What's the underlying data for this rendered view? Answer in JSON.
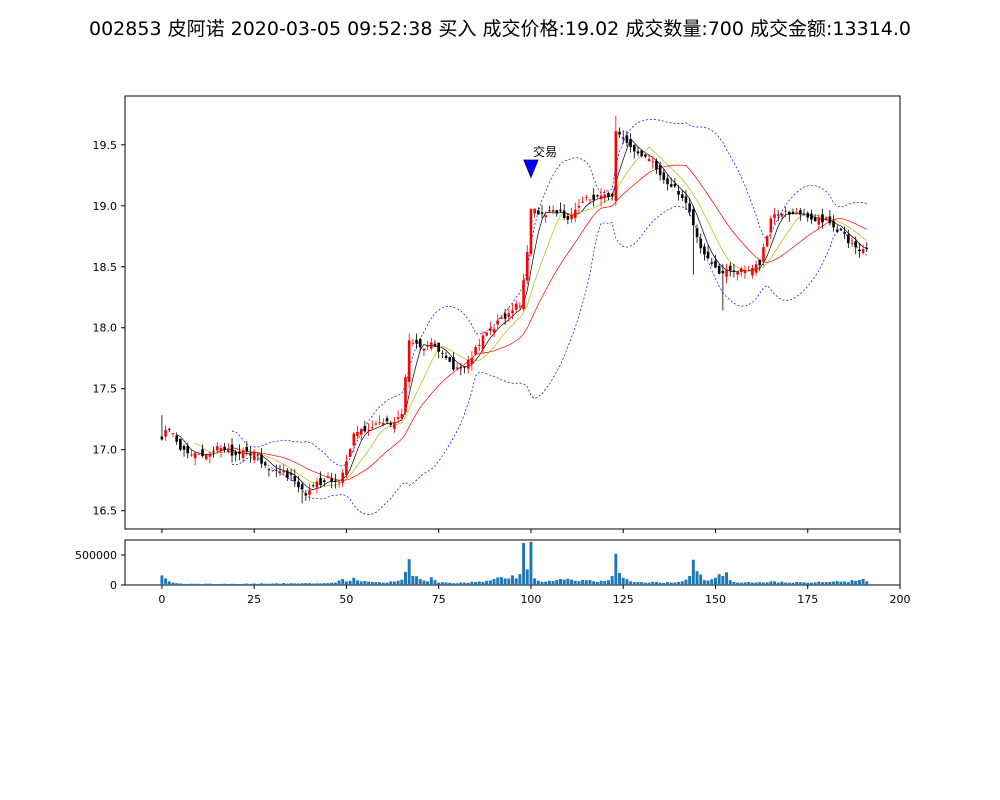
{
  "title": "002853 皮阿诺 2020-03-05 09:52:38 买入 成交价格:19.02 成交数量:700 成交金额:13314.0",
  "chart_data": [
    {
      "type": "candlestick",
      "panel": "price",
      "xlim": [
        -10,
        200
      ],
      "ylim": [
        16.35,
        19.9
      ],
      "yticks": [
        "16.5",
        "17.0",
        "17.5",
        "18.0",
        "18.5",
        "19.0",
        "19.5"
      ],
      "grid": false,
      "up_color": "#ff0000",
      "down_color": "#000000",
      "ma_colors": [
        "#000000",
        "#b8b800",
        "#ff0000"
      ],
      "bollinger_color": "#0000ff",
      "close_keypoints": [
        [
          0,
          17.1
        ],
        [
          2,
          17.18
        ],
        [
          5,
          17.0
        ],
        [
          8,
          16.94
        ],
        [
          12,
          16.98
        ],
        [
          16,
          17.02
        ],
        [
          20,
          16.96
        ],
        [
          25,
          16.98
        ],
        [
          28,
          16.85
        ],
        [
          32,
          16.82
        ],
        [
          36,
          16.76
        ],
        [
          39,
          16.62
        ],
        [
          42,
          16.72
        ],
        [
          45,
          16.76
        ],
        [
          48,
          16.74
        ],
        [
          50,
          16.9
        ],
        [
          52,
          17.12
        ],
        [
          55,
          17.16
        ],
        [
          58,
          17.2
        ],
        [
          62,
          17.22
        ],
        [
          65,
          17.28
        ],
        [
          67,
          17.9
        ],
        [
          70,
          17.82
        ],
        [
          73,
          17.88
        ],
        [
          76,
          17.8
        ],
        [
          79,
          17.66
        ],
        [
          82,
          17.68
        ],
        [
          85,
          17.82
        ],
        [
          88,
          17.96
        ],
        [
          91,
          18.04
        ],
        [
          94,
          18.12
        ],
        [
          97,
          18.2
        ],
        [
          99,
          18.6
        ],
        [
          100,
          18.98
        ],
        [
          103,
          18.92
        ],
        [
          106,
          18.98
        ],
        [
          110,
          18.9
        ],
        [
          114,
          19.04
        ],
        [
          118,
          19.08
        ],
        [
          122,
          19.06
        ],
        [
          123,
          19.62
        ],
        [
          126,
          19.5
        ],
        [
          130,
          19.4
        ],
        [
          134,
          19.32
        ],
        [
          137,
          19.18
        ],
        [
          139,
          19.14
        ],
        [
          141,
          19.08
        ],
        [
          143,
          18.96
        ],
        [
          145,
          18.72
        ],
        [
          148,
          18.56
        ],
        [
          151,
          18.46
        ],
        [
          154,
          18.48
        ],
        [
          158,
          18.48
        ],
        [
          162,
          18.52
        ],
        [
          165,
          18.9
        ],
        [
          168,
          18.94
        ],
        [
          172,
          18.96
        ],
        [
          176,
          18.9
        ],
        [
          180,
          18.88
        ],
        [
          184,
          18.78
        ],
        [
          187,
          18.68
        ],
        [
          189,
          18.62
        ],
        [
          191,
          18.64
        ]
      ],
      "trade_marker": {
        "x": 100,
        "y": 19.3,
        "label": "交易"
      }
    },
    {
      "type": "bar",
      "panel": "volume",
      "xlim": [
        -10,
        200
      ],
      "ylim": [
        0,
        750000
      ],
      "yticks": [
        "0",
        "500000"
      ],
      "xticks": [
        "0",
        "25",
        "50",
        "75",
        "100",
        "125",
        "150",
        "175",
        "200"
      ],
      "bar_color": "#1f77b4",
      "volume_keypoints": [
        [
          0,
          160000
        ],
        [
          1,
          110000
        ],
        [
          2,
          60000
        ],
        [
          3,
          40000
        ],
        [
          4,
          30000
        ],
        [
          5,
          25000
        ],
        [
          10,
          20000
        ],
        [
          20,
          18000
        ],
        [
          30,
          25000
        ],
        [
          40,
          30000
        ],
        [
          47,
          40000
        ],
        [
          49,
          100000
        ],
        [
          50,
          60000
        ],
        [
          51,
          70000
        ],
        [
          52,
          120000
        ],
        [
          54,
          60000
        ],
        [
          57,
          50000
        ],
        [
          60,
          40000
        ],
        [
          65,
          90000
        ],
        [
          66,
          220000
        ],
        [
          67,
          430000
        ],
        [
          68,
          150000
        ],
        [
          70,
          100000
        ],
        [
          72,
          60000
        ],
        [
          73,
          130000
        ],
        [
          75,
          40000
        ],
        [
          80,
          30000
        ],
        [
          85,
          50000
        ],
        [
          88,
          70000
        ],
        [
          90,
          100000
        ],
        [
          93,
          110000
        ],
        [
          95,
          160000
        ],
        [
          96,
          110000
        ],
        [
          97,
          180000
        ],
        [
          98,
          700000
        ],
        [
          99,
          260000
        ],
        [
          100,
          720000
        ],
        [
          101,
          110000
        ],
        [
          102,
          70000
        ],
        [
          105,
          70000
        ],
        [
          108,
          100000
        ],
        [
          112,
          70000
        ],
        [
          115,
          80000
        ],
        [
          118,
          50000
        ],
        [
          121,
          80000
        ],
        [
          122,
          150000
        ],
        [
          123,
          520000
        ],
        [
          124,
          200000
        ],
        [
          125,
          120000
        ],
        [
          127,
          60000
        ],
        [
          130,
          50000
        ],
        [
          135,
          40000
        ],
        [
          140,
          50000
        ],
        [
          142,
          90000
        ],
        [
          143,
          150000
        ],
        [
          144,
          420000
        ],
        [
          145,
          230000
        ],
        [
          147,
          80000
        ],
        [
          150,
          120000
        ],
        [
          151,
          180000
        ],
        [
          152,
          150000
        ],
        [
          153,
          210000
        ],
        [
          154,
          80000
        ],
        [
          155,
          50000
        ],
        [
          160,
          40000
        ],
        [
          165,
          60000
        ],
        [
          170,
          40000
        ],
        [
          180,
          50000
        ],
        [
          185,
          60000
        ],
        [
          188,
          70000
        ],
        [
          190,
          100000
        ],
        [
          191,
          60000
        ]
      ]
    }
  ]
}
